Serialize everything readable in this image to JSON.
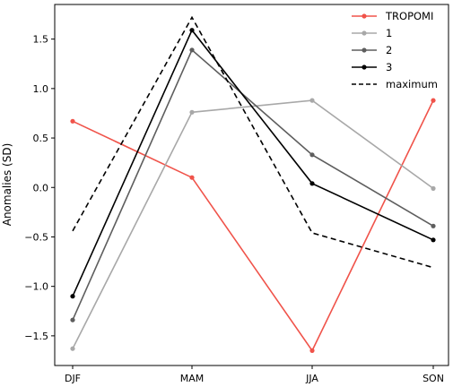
{
  "chart_data": {
    "type": "line",
    "title": "",
    "xlabel": "",
    "ylabel": "Anomalies (SD)",
    "categories": [
      "DJF",
      "MAM",
      "JJA",
      "SON"
    ],
    "ylim": [
      -1.8,
      1.85
    ],
    "yticks": [
      -1.5,
      -1.0,
      -0.5,
      0.0,
      0.5,
      1.0,
      1.5
    ],
    "ytick_labels": [
      "−1.5",
      "−1.0",
      "−0.5",
      "0.0",
      "0.5",
      "1.0",
      "1.5"
    ],
    "grid": false,
    "legend_position": "top-right",
    "series": [
      {
        "name": "TROPOMI",
        "values": [
          0.67,
          0.1,
          -1.65,
          0.88
        ],
        "color": "#f0534a",
        "dashed": false,
        "markers": true
      },
      {
        "name": "1",
        "values": [
          -1.63,
          0.76,
          0.88,
          -0.01
        ],
        "color": "#a8a8a8",
        "dashed": false,
        "markers": true
      },
      {
        "name": "2",
        "values": [
          -1.34,
          1.39,
          0.33,
          -0.39
        ],
        "color": "#5e5e5e",
        "dashed": false,
        "markers": true
      },
      {
        "name": "3",
        "values": [
          -1.1,
          1.59,
          0.04,
          -0.53
        ],
        "color": "#000000",
        "dashed": false,
        "markers": true
      },
      {
        "name": "maximum",
        "values": [
          -0.44,
          1.72,
          -0.46,
          -0.81
        ],
        "color": "#000000",
        "dashed": true,
        "markers": false
      }
    ]
  }
}
